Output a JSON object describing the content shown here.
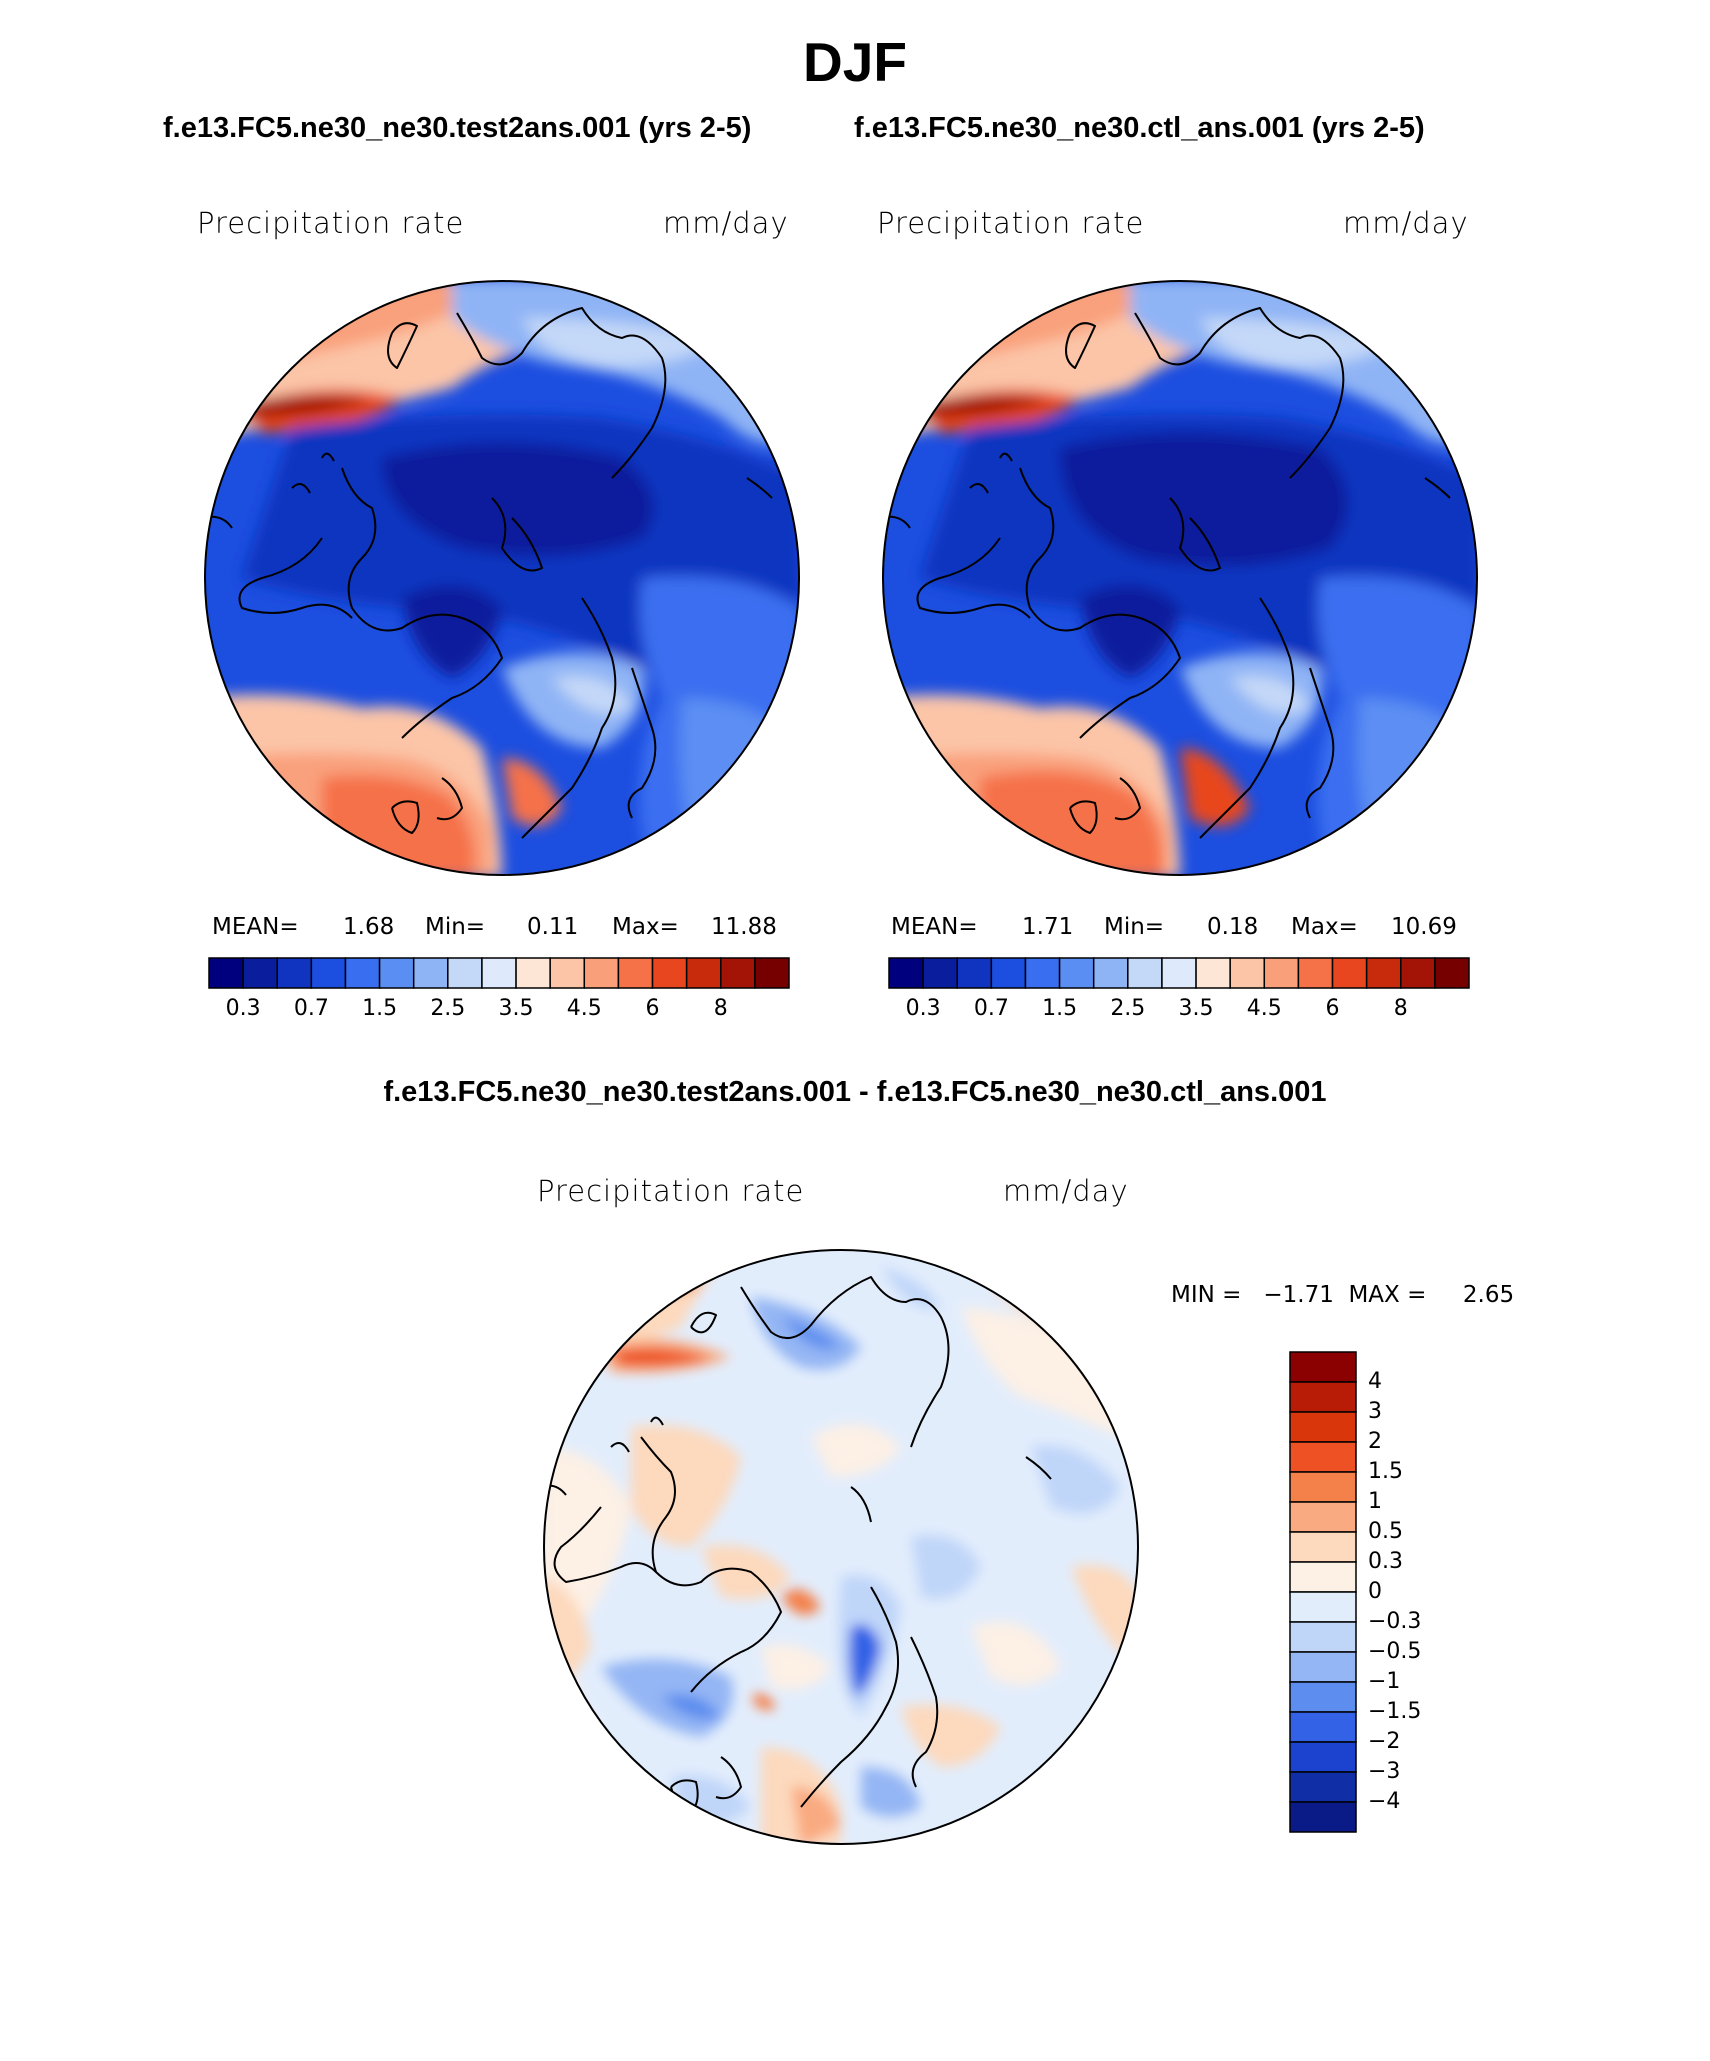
{
  "title": "DJF",
  "panels": [
    {
      "case": "f.e13.FC5.ne30_ne30.test2ans.001 (yrs 2-5)",
      "variable": "Precipitation rate",
      "units": "mm/day",
      "stats": {
        "mean_label": "MEAN=",
        "mean": "1.68",
        "min_label": "Min=",
        "min": "0.11",
        "max_label": "Max=",
        "max": "11.88"
      }
    },
    {
      "case": "f.e13.FC5.ne30_ne30.ctl_ans.001 (yrs 2-5)",
      "variable": "Precipitation rate",
      "units": "mm/day",
      "stats": {
        "mean_label": "MEAN=",
        "mean": "1.71",
        "min_label": "Min=",
        "min": "0.18",
        "max_label": "Max=",
        "max": "10.69"
      }
    }
  ],
  "diff": {
    "title": "f.e13.FC5.ne30_ne30.test2ans.001 - f.e13.FC5.ne30_ne30.ctl_ans.001",
    "variable": "Precipitation rate",
    "units": "mm/day",
    "minmax": "MIN =   −1.71  MAX =     2.65"
  },
  "chart_data": [
    {
      "type": "heatmap",
      "projection": "north polar stereographic",
      "field": "Precipitation rate (test2ans, DJF)",
      "units": "mm/day",
      "colorbar": {
        "colors": [
          "#00007f",
          "#0a1d9c",
          "#1034c0",
          "#1c4ee0",
          "#3a6ef0",
          "#5b8ef3",
          "#8fb4f5",
          "#c4d8f8",
          "#deeafb",
          "#fde6d6",
          "#fcc5a7",
          "#f9a07b",
          "#f57148",
          "#e8461f",
          "#c72b0c",
          "#a31406",
          "#760000"
        ],
        "tick_labels": [
          "0.3",
          "0.7",
          "1.5",
          "2.5",
          "3.5",
          "4.5",
          "6",
          "8"
        ],
        "tick_boundaries": [
          1,
          3,
          5,
          7,
          9,
          11,
          13,
          15
        ]
      },
      "stats": {
        "mean": 1.68,
        "min": 0.11,
        "max": 11.88
      }
    },
    {
      "type": "heatmap",
      "projection": "north polar stereographic",
      "field": "Precipitation rate (ctl_ans, DJF)",
      "units": "mm/day",
      "colorbar": {
        "colors": [
          "#00007f",
          "#0a1d9c",
          "#1034c0",
          "#1c4ee0",
          "#3a6ef0",
          "#5b8ef3",
          "#8fb4f5",
          "#c4d8f8",
          "#deeafb",
          "#fde6d6",
          "#fcc5a7",
          "#f9a07b",
          "#f57148",
          "#e8461f",
          "#c72b0c",
          "#a31406",
          "#760000"
        ],
        "tick_labels": [
          "0.3",
          "0.7",
          "1.5",
          "2.5",
          "3.5",
          "4.5",
          "6",
          "8"
        ],
        "tick_boundaries": [
          1,
          3,
          5,
          7,
          9,
          11,
          13,
          15
        ]
      },
      "stats": {
        "mean": 1.71,
        "min": 0.18,
        "max": 10.69
      }
    },
    {
      "type": "heatmap",
      "projection": "north polar stereographic",
      "field": "Precipitation rate difference (test2ans - ctl_ans)",
      "units": "mm/day",
      "colorbar": {
        "orientation": "vertical",
        "colors_top_to_bottom": [
          "#8b0000",
          "#b81c06",
          "#d9360c",
          "#ee5224",
          "#f4804a",
          "#f9aa80",
          "#fdd9bd",
          "#fdf0e5",
          "#e2edfc",
          "#c0d6f9",
          "#94b6f4",
          "#5c8def",
          "#3362e6",
          "#1b43d0",
          "#102fa6",
          "#0a1a86"
        ],
        "tick_labels": [
          "4",
          "3",
          "2",
          "1.5",
          "1",
          "0.5",
          "0.3",
          "0",
          "−0.3",
          "−0.5",
          "−1",
          "−1.5",
          "−2",
          "−3",
          "−4"
        ]
      },
      "stats": {
        "min": -1.71,
        "max": 2.65
      }
    }
  ]
}
